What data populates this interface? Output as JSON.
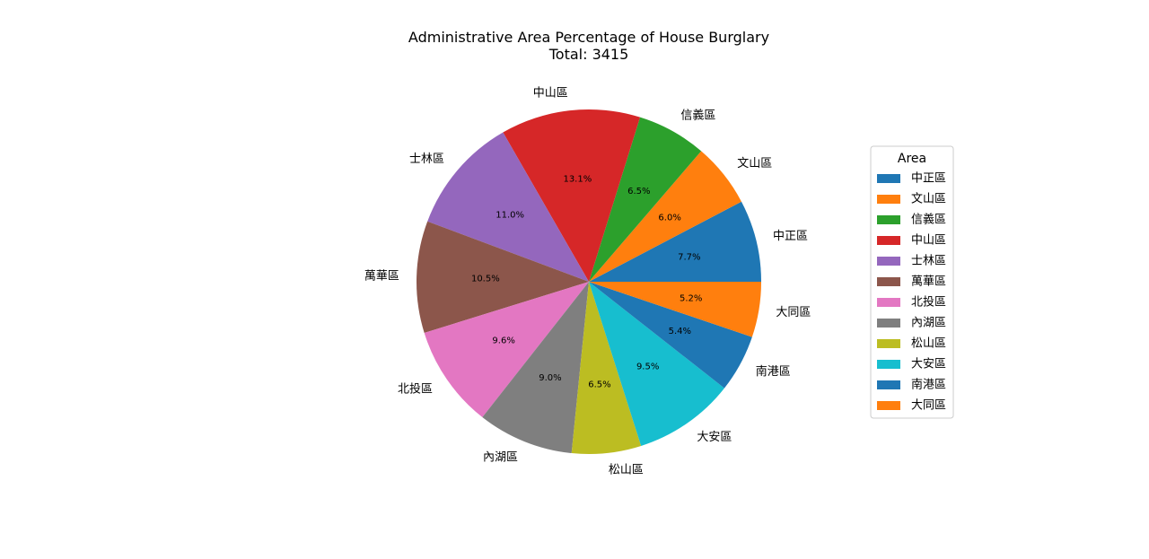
{
  "chart_data": {
    "type": "pie",
    "title": "Administrative Area Percentage of House Burglary",
    "subtitle": "Total: 3415",
    "start_angle_deg": 0,
    "direction": "counterclockwise",
    "legend": {
      "title": "Area",
      "placement": "right"
    },
    "slices": [
      {
        "label": "中正區",
        "percent_label": "7.7%",
        "value": 7.7,
        "color": "#1f77b4"
      },
      {
        "label": "文山區",
        "percent_label": "6.0%",
        "value": 6.0,
        "color": "#ff7f0e"
      },
      {
        "label": "信義區",
        "percent_label": "6.5%",
        "value": 6.5,
        "color": "#2ca02c"
      },
      {
        "label": "中山區",
        "percent_label": "13.1%",
        "value": 13.1,
        "color": "#d62728"
      },
      {
        "label": "士林區",
        "percent_label": "11.0%",
        "value": 11.0,
        "color": "#9467bd"
      },
      {
        "label": "萬華區",
        "percent_label": "10.5%",
        "value": 10.5,
        "color": "#8c564b"
      },
      {
        "label": "北投區",
        "percent_label": "9.6%",
        "value": 9.6,
        "color": "#e377c2"
      },
      {
        "label": "內湖區",
        "percent_label": "9.0%",
        "value": 9.0,
        "color": "#7f7f7f"
      },
      {
        "label": "松山區",
        "percent_label": "6.5%",
        "value": 6.5,
        "color": "#bcbd22"
      },
      {
        "label": "大安區",
        "percent_label": "9.5%",
        "value": 9.5,
        "color": "#17becf"
      },
      {
        "label": "南港區",
        "percent_label": "5.4%",
        "value": 5.4,
        "color": "#1f77b4"
      },
      {
        "label": "大同區",
        "percent_label": "5.2%",
        "value": 5.2,
        "color": "#ff7f0e"
      }
    ]
  }
}
